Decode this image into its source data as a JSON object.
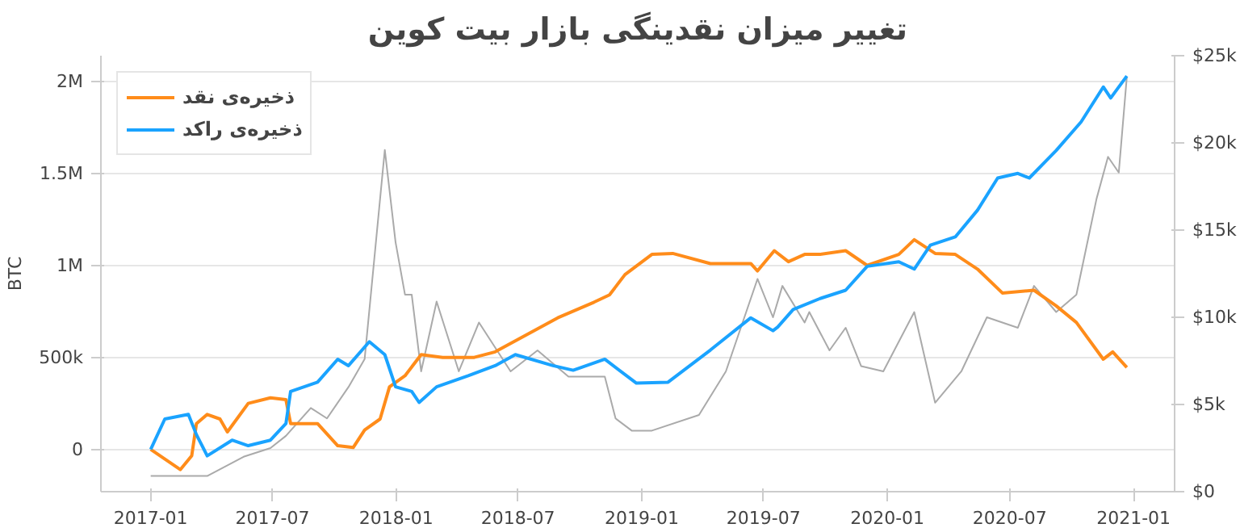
{
  "chart_data": {
    "type": "line",
    "title": "تغییر میزان نقدینگی بازار بیت کوین",
    "ylabel": "BTC",
    "xlim": [
      "2016-10-19",
      "2021-03-03"
    ],
    "xticks": [
      "2017-01",
      "2017-07",
      "2018-01",
      "2018-07",
      "2019-01",
      "2019-07",
      "2020-01",
      "2020-07",
      "2021-01"
    ],
    "ylim": [
      -230000,
      2140000
    ],
    "yticks": [
      0,
      {
        "value": 500000,
        "label": "500k"
      },
      {
        "value": 1000000,
        "label": "1M"
      },
      {
        "value": 1500000,
        "label": "1.5M"
      },
      {
        "value": 2000000,
        "label": "2M"
      }
    ],
    "y2lim": [
      0,
      25000
    ],
    "y2ticks": [
      {
        "value": 0,
        "label": "$0"
      },
      {
        "value": 5000,
        "label": "$5k"
      },
      {
        "value": 10000,
        "label": "$10k"
      },
      {
        "value": 15000,
        "label": "$15k"
      },
      {
        "value": 20000,
        "label": "$20k"
      },
      {
        "value": 25000,
        "label": "$25k"
      }
    ],
    "grid": "y",
    "legend": "top left",
    "line_style": "solid",
    "series": [
      {
        "name": null,
        "color": "#aaaaaa",
        "axis": "y2",
        "x": [
          "2017-01-01",
          "2017-02-14",
          "2017-03-26",
          "2017-05-19",
          "2017-06-28",
          "2017-07-21",
          "2017-08-27",
          "2017-09-20",
          "2017-10-22",
          "2017-11-15",
          "2017-12-15",
          "2017-12-31",
          "2018-01-14",
          "2018-01-24",
          "2018-02-07",
          "2018-03-02",
          "2018-04-04",
          "2018-05-04",
          "2018-06-20",
          "2018-07-30",
          "2018-09-14",
          "2018-11-07",
          "2018-11-23",
          "2018-12-17",
          "2019-01-16",
          "2019-03-27",
          "2019-05-06",
          "2019-06-22",
          "2019-07-15",
          "2019-07-29",
          "2019-08-31",
          "2019-09-07",
          "2019-10-07",
          "2019-10-31",
          "2019-11-23",
          "2019-12-26",
          "2020-02-10",
          "2020-03-12",
          "2020-04-20",
          "2020-05-28",
          "2020-07-13",
          "2020-08-06",
          "2020-09-08",
          "2020-10-08",
          "2020-11-07",
          "2020-11-24",
          "2020-12-10",
          "2020-12-22"
        ],
        "values": [
          900,
          900,
          900,
          2000,
          2500,
          3200,
          4800,
          4200,
          6000,
          7600,
          19600,
          14300,
          11300,
          11300,
          6900,
          10900,
          6900,
          9700,
          6900,
          8100,
          6600,
          6600,
          4200,
          3500,
          3500,
          4400,
          6900,
          12200,
          10000,
          11800,
          9700,
          10300,
          8100,
          9400,
          7200,
          6900,
          10300,
          5100,
          6900,
          10000,
          9400,
          11800,
          10300,
          11300,
          16800,
          19200,
          18300,
          23800
        ]
      },
      {
        "name": "ذخیره‌ی نقد",
        "color": "#ff8c1a",
        "x": [
          "2017-01-01",
          "2017-02-14",
          "2017-03-03",
          "2017-03-10",
          "2017-03-26",
          "2017-04-14",
          "2017-04-25",
          "2017-05-26",
          "2017-06-28",
          "2017-07-21",
          "2017-07-28",
          "2017-09-06",
          "2017-10-06",
          "2017-10-29",
          "2017-11-15",
          "2017-12-08",
          "2017-12-22",
          "2018-01-14",
          "2018-02-07",
          "2018-03-11",
          "2018-04-27",
          "2018-05-28",
          "2018-08-29",
          "2018-10-22",
          "2018-11-14",
          "2018-12-07",
          "2019-01-16",
          "2019-02-16",
          "2019-04-13",
          "2019-06-12",
          "2019-06-22",
          "2019-07-17",
          "2019-08-07",
          "2019-08-31",
          "2019-09-23",
          "2019-10-31",
          "2019-12-02",
          "2020-01-18",
          "2020-02-10",
          "2020-03-12",
          "2020-04-11",
          "2020-05-14",
          "2020-06-20",
          "2020-08-06",
          "2020-09-08",
          "2020-10-08",
          "2020-11-17",
          "2020-12-01",
          "2020-12-22"
        ],
        "values": [
          0,
          -110000,
          -35000,
          140000,
          190000,
          165000,
          95000,
          250000,
          280000,
          270000,
          140000,
          140000,
          20000,
          10000,
          105000,
          165000,
          340000,
          400000,
          515000,
          500000,
          500000,
          530000,
          715000,
          800000,
          840000,
          950000,
          1060000,
          1065000,
          1010000,
          1010000,
          970000,
          1080000,
          1020000,
          1060000,
          1060000,
          1080000,
          1000000,
          1060000,
          1140000,
          1065000,
          1060000,
          980000,
          850000,
          865000,
          780000,
          690000,
          490000,
          530000,
          445000
        ]
      },
      {
        "name": "ذخیره‌ی راکد",
        "color": "#1aa3ff",
        "x": [
          "2017-01-01",
          "2017-01-22",
          "2017-02-26",
          "2017-03-10",
          "2017-03-26",
          "2017-05-02",
          "2017-05-26",
          "2017-06-28",
          "2017-07-21",
          "2017-07-28",
          "2017-09-06",
          "2017-10-06",
          "2017-10-22",
          "2017-11-22",
          "2017-12-15",
          "2017-12-31",
          "2018-01-24",
          "2018-02-04",
          "2018-03-02",
          "2018-04-18",
          "2018-05-28",
          "2018-06-27",
          "2018-08-22",
          "2018-09-21",
          "2018-11-07",
          "2018-12-24",
          "2019-02-09",
          "2019-04-13",
          "2019-06-12",
          "2019-07-15",
          "2019-07-22",
          "2019-08-14",
          "2019-09-23",
          "2019-10-31",
          "2019-12-02",
          "2020-01-18",
          "2020-02-10",
          "2020-03-05",
          "2020-04-11",
          "2020-05-14",
          "2020-06-13",
          "2020-07-13",
          "2020-07-30",
          "2020-09-08",
          "2020-10-15",
          "2020-11-17",
          "2020-11-28",
          "2020-12-22"
        ],
        "values": [
          0,
          165000,
          190000,
          80000,
          -35000,
          50000,
          20000,
          50000,
          140000,
          315000,
          365000,
          490000,
          455000,
          585000,
          515000,
          340000,
          315000,
          255000,
          340000,
          400000,
          455000,
          515000,
          455000,
          430000,
          490000,
          360000,
          365000,
          540000,
          715000,
          645000,
          665000,
          760000,
          820000,
          865000,
          995000,
          1020000,
          980000,
          1110000,
          1155000,
          1300000,
          1475000,
          1500000,
          1475000,
          1625000,
          1780000,
          1970000,
          1910000,
          2030000
        ]
      }
    ]
  }
}
